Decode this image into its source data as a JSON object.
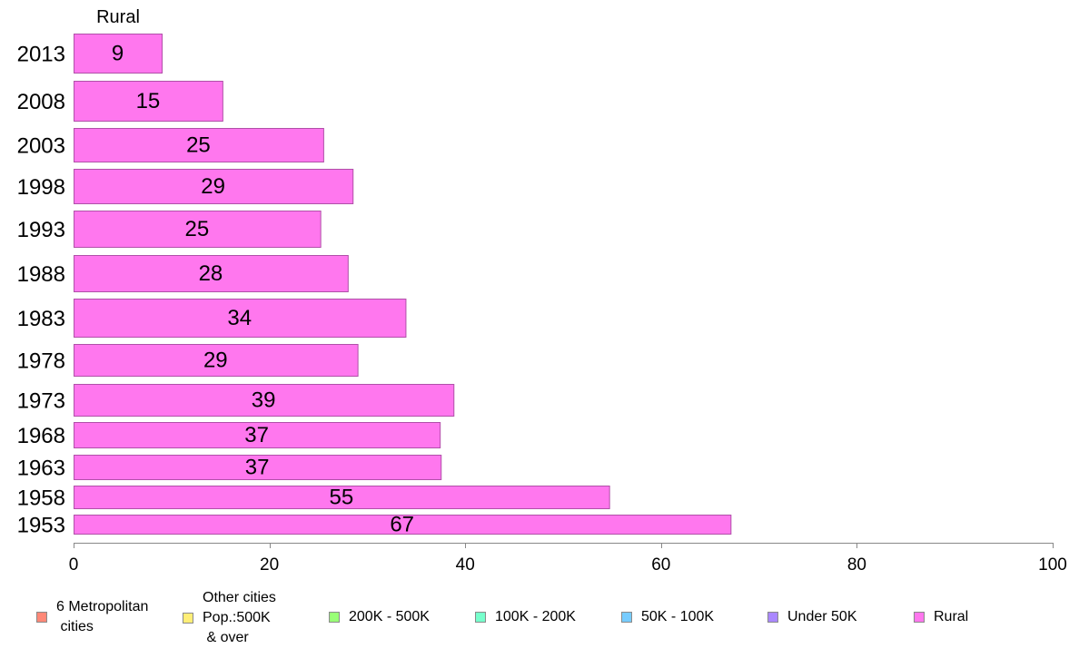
{
  "chart_data": {
    "type": "bar",
    "orientation": "horizontal",
    "series_label": "Rural",
    "categories": [
      "2013",
      "2008",
      "2003",
      "1998",
      "1993",
      "1988",
      "1983",
      "1978",
      "1973",
      "1968",
      "1963",
      "1958",
      "1953"
    ],
    "values": [
      9,
      15,
      25,
      29,
      25,
      28,
      34,
      29,
      39,
      37,
      37,
      55,
      67
    ],
    "plotted_values": [
      9.0,
      15.2,
      25.5,
      28.5,
      25.2,
      28.0,
      33.9,
      29.0,
      38.8,
      37.4,
      37.5,
      54.7,
      67.1
    ],
    "xlim": [
      0,
      100
    ],
    "xticks": [
      0,
      20,
      40,
      60,
      80,
      100
    ],
    "bar_color": "#ff77ee",
    "bar_border_color": "#b050a8",
    "legend_placement": "bottom",
    "legend": [
      {
        "label": "6 Metropolitan\n cities",
        "color": "#ff8877"
      },
      {
        "label": "Other cities\nPop.:500K\n & over",
        "color": "#ffee77"
      },
      {
        "label": "200K - 500K",
        "color": "#99ff77"
      },
      {
        "label": "100K - 200K",
        "color": "#77ffcc"
      },
      {
        "label": "50K - 100K",
        "color": "#77ccff"
      },
      {
        "label": "Under 50K",
        "color": "#aa88ff"
      },
      {
        "label": "Rural",
        "color": "#ff77ee"
      }
    ]
  }
}
